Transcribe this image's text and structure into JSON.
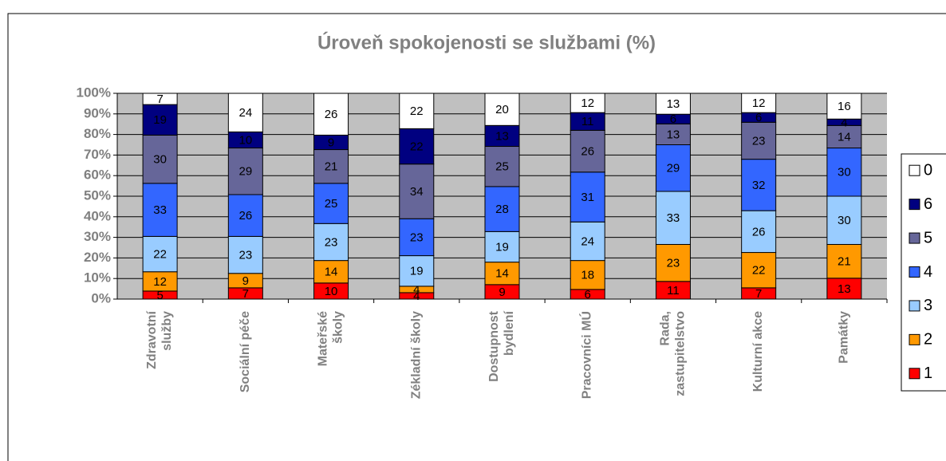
{
  "chart_data": {
    "type": "stacked_bar_100",
    "title": "Úroveň spokojenosti se službami (%)",
    "categories": [
      "Zdravotní\nslužby",
      "Sociální péče",
      "Mateřské\nškoly",
      "Zékladní školy",
      "Dostupnost\nbydlení",
      "Pracovníci MÚ",
      "Rada,\nzastupitelstvo",
      "Kulturní akce",
      "Památky"
    ],
    "series": [
      {
        "name": "1",
        "color": "#ff0000",
        "values": [
          5,
          7,
          10,
          4,
          9,
          6,
          11,
          7,
          13
        ]
      },
      {
        "name": "2",
        "color": "#ff9900",
        "values": [
          12,
          9,
          14,
          4,
          14,
          18,
          23,
          22,
          21
        ]
      },
      {
        "name": "3",
        "color": "#99ccff",
        "values": [
          22,
          23,
          23,
          19,
          19,
          24,
          33,
          26,
          30
        ]
      },
      {
        "name": "4",
        "color": "#3366ff",
        "values": [
          33,
          26,
          25,
          23,
          28,
          31,
          29,
          32,
          30
        ]
      },
      {
        "name": "5",
        "color": "#666699",
        "values": [
          30,
          29,
          21,
          34,
          25,
          26,
          13,
          23,
          14
        ]
      },
      {
        "name": "6",
        "color": "#000080",
        "values": [
          19,
          10,
          9,
          22,
          13,
          11,
          6,
          6,
          4
        ]
      },
      {
        "name": "0",
        "color": "#ffffff",
        "values": [
          7,
          24,
          26,
          22,
          20,
          12,
          13,
          12,
          16
        ]
      }
    ],
    "ylim": [
      0,
      100
    ],
    "yticks": [
      {
        "value": 0,
        "label": "0%"
      },
      {
        "value": 10,
        "label": "10%"
      },
      {
        "value": 20,
        "label": "20%"
      },
      {
        "value": 30,
        "label": "30%"
      },
      {
        "value": 40,
        "label": "40%"
      },
      {
        "value": 50,
        "label": "50%"
      },
      {
        "value": 60,
        "label": "60%"
      },
      {
        "value": 70,
        "label": "70%"
      },
      {
        "value": 80,
        "label": "80%"
      },
      {
        "value": 90,
        "label": "90%"
      },
      {
        "value": 100,
        "label": "100%"
      }
    ],
    "grid": true,
    "legend": "right"
  }
}
